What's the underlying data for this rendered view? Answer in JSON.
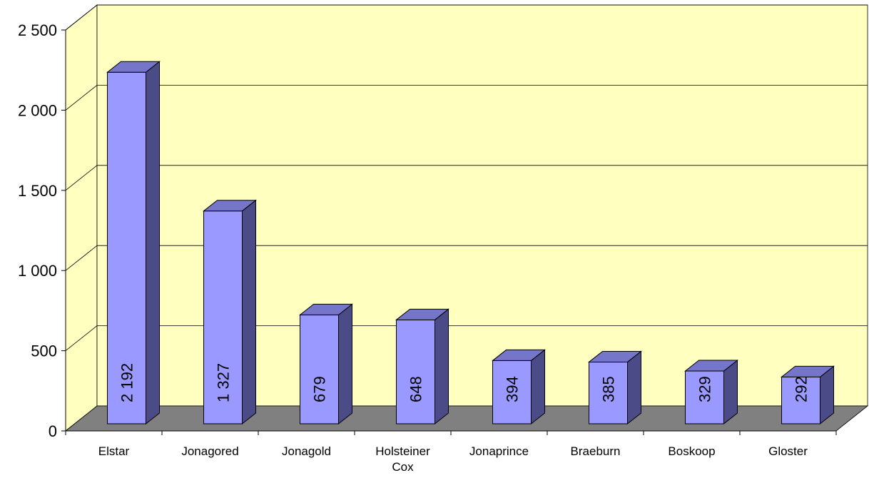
{
  "chart_data": {
    "type": "bar",
    "style": "3d-column",
    "categories": [
      "Elstar",
      "Jonagored",
      "Jonagold",
      "Holsteiner Cox",
      "Jonaprince",
      "Braeburn",
      "Boskoop",
      "Gloster"
    ],
    "category_lines": [
      [
        "Elstar"
      ],
      [
        "Jonagored"
      ],
      [
        "Jonagold"
      ],
      [
        "Holsteiner",
        "Cox"
      ],
      [
        "Jonaprince"
      ],
      [
        "Braeburn"
      ],
      [
        "Boskoop"
      ],
      [
        "Gloster"
      ]
    ],
    "values": [
      2192,
      1327,
      679,
      648,
      394,
      385,
      329,
      292
    ],
    "value_labels": [
      "2 192",
      "1 327",
      "679",
      "648",
      "394",
      "385",
      "329",
      "292"
    ],
    "ylim": [
      0,
      2500
    ],
    "yticks": [
      0,
      500,
      1000,
      1500,
      2000,
      2500
    ],
    "ytick_labels": [
      "0",
      "500",
      "1 000",
      "1 500",
      "2 000",
      "2 500"
    ],
    "grid": true,
    "legend": "none",
    "colors": {
      "wall": "#ffffc0",
      "floor": "#808080",
      "bar_front": "#9999ff",
      "bar_side": "#4b4b87",
      "bar_top": "#7575c9",
      "grid": "#000000"
    }
  }
}
